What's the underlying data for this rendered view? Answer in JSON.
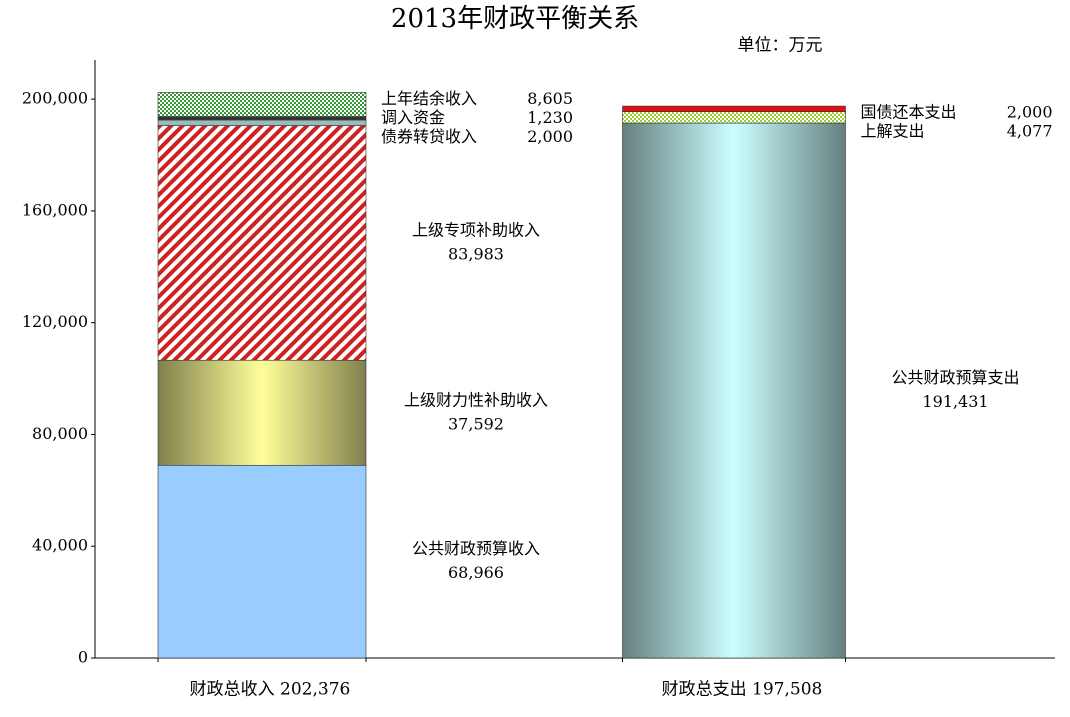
{
  "chart_data": {
    "type": "stacked-bar",
    "title": "2013年财政平衡关系",
    "subtitle": "单位：万元",
    "categories": [
      "财政总收入 202,376",
      "财政总支出 197,508"
    ],
    "ylim": [
      0,
      214000
    ],
    "yticks": [
      0,
      {
        "value": 40000,
        "label": "40,000"
      },
      {
        "value": 80000,
        "label": "80,000"
      },
      {
        "value": 120000,
        "label": "120,000"
      },
      {
        "value": 160000,
        "label": "160,000"
      },
      {
        "value": 200000,
        "label": "200,000"
      }
    ],
    "series": [
      {
        "name": "公共财政预算收入",
        "color": "#99ccff",
        "pattern": "solid",
        "values": [
          68966,
          null
        ],
        "value_labels": [
          "68,966",
          null
        ]
      },
      {
        "name": "上级财力性补助收入",
        "color": "#ffff99",
        "pattern": "gradient",
        "values": [
          37592,
          null
        ],
        "value_labels": [
          "37,592",
          null
        ]
      },
      {
        "name": "上级专项补助收入",
        "color": "#cc2222",
        "pattern": "hatch",
        "values": [
          83983,
          null
        ],
        "value_labels": [
          "83,983",
          null
        ]
      },
      {
        "name": "债券转贷收入",
        "color": "#99bbbb",
        "pattern": "solid",
        "values": [
          2000,
          null
        ],
        "value_labels": [
          "2,000",
          null
        ]
      },
      {
        "name": "调入资金",
        "color": "#333333",
        "pattern": "solid",
        "values": [
          1230,
          null
        ],
        "value_labels": [
          "1,230",
          null
        ]
      },
      {
        "name": "上年结余收入",
        "color": "#339933",
        "pattern": "checker",
        "values": [
          8605,
          null
        ],
        "value_labels": [
          "8,605",
          null
        ]
      },
      {
        "name": "公共财政预算支出",
        "color": "#ccffff",
        "pattern": "gradient",
        "values": [
          null,
          191431
        ],
        "value_labels": [
          null,
          "191,431"
        ]
      },
      {
        "name": "上解支出",
        "color": "#99cc33",
        "pattern": "checker",
        "values": [
          null,
          4077
        ],
        "value_labels": [
          null,
          "4,077"
        ]
      },
      {
        "name": "国债还本支出",
        "color": "#dd1111",
        "pattern": "solid",
        "values": [
          null,
          2000
        ],
        "value_labels": [
          null,
          "2,000"
        ]
      }
    ]
  }
}
